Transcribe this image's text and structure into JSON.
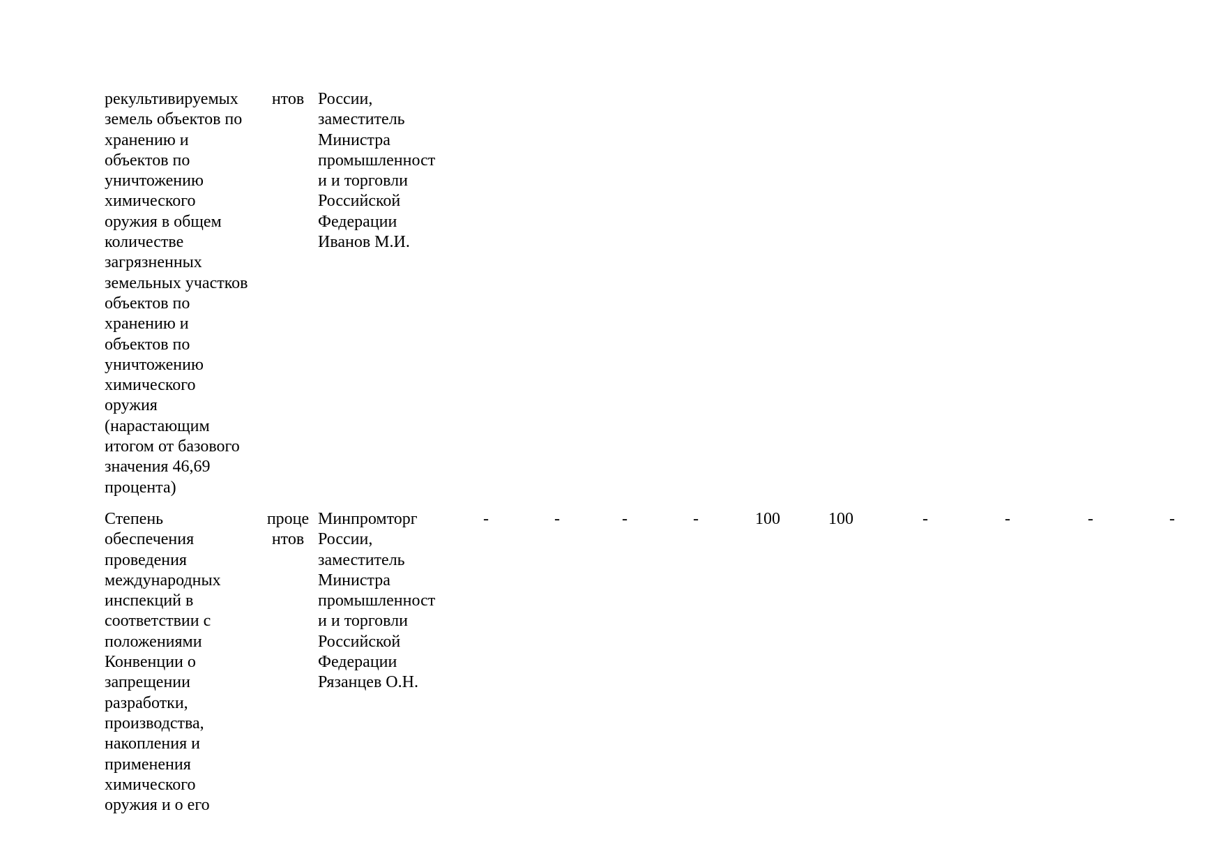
{
  "document": {
    "background_color": "#ffffff",
    "text_color": "#000000",
    "rows": [
      {
        "indicator_lines": [
          "рекультивируемых",
          "земель объектов по",
          "хранению и",
          "объектов по",
          "уничтожению",
          "химического",
          "оружия в общем",
          "количестве",
          "загрязненных",
          "земельных участков",
          "объектов по",
          "хранению и",
          "объектов по",
          "уничтожению",
          "химического",
          "оружия",
          "(нарастающим",
          "итогом от базового",
          "значения 46,69",
          "процента)"
        ],
        "unit_lines": [
          "нтов"
        ],
        "executive_lines": [
          "России,",
          "заместитель",
          "Министра",
          "промышленност",
          "и и торговли",
          "Российской",
          "Федерации",
          "Иванов М.И."
        ],
        "values": [
          "",
          "",
          "",
          "",
          "",
          "",
          "",
          "",
          "",
          ""
        ]
      },
      {
        "indicator_lines": [
          "Степень",
          "обеспечения",
          "проведения",
          "международных",
          "инспекций в",
          "соответствии с",
          "положениями",
          "Конвенции о",
          "запрещении",
          "разработки,",
          "производства,",
          "накопления и",
          "применения",
          "химического",
          "оружия и о его"
        ],
        "unit_lines": [
          "проце",
          "нтов"
        ],
        "executive_lines": [
          "Минпромторг",
          "России,",
          "заместитель",
          "Министра",
          "промышленност",
          "и и торговли",
          "Российской",
          "Федерации",
          "Рязанцев О.Н."
        ],
        "values": [
          "-",
          "-",
          "-",
          "-",
          "100",
          "100",
          "-",
          "-",
          "-",
          "-"
        ]
      }
    ]
  }
}
